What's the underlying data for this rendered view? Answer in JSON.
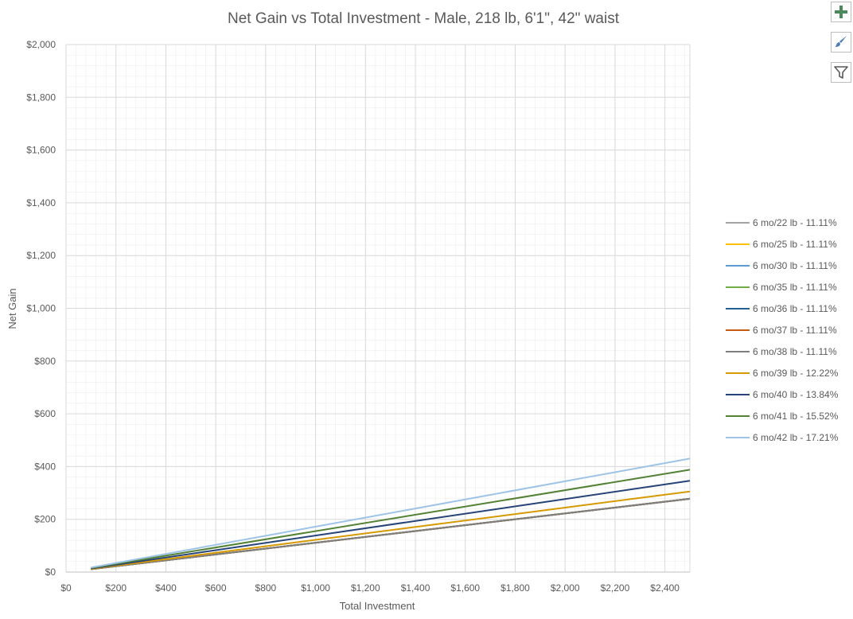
{
  "chart_data": {
    "type": "line",
    "title": "Net Gain vs Total Investment - Male, 218 lb, 6'1\", 42\" waist",
    "xlabel": "Total Investment",
    "ylabel": "Net Gain",
    "xlim": [
      0,
      2500
    ],
    "ylim": [
      0,
      2000
    ],
    "x_ticks": [
      0,
      200,
      400,
      600,
      800,
      1000,
      1200,
      1400,
      1600,
      1800,
      2000,
      2200,
      2400
    ],
    "x_tick_labels": [
      "$0",
      "$200",
      "$400",
      "$600",
      "$800",
      "$1,000",
      "$1,200",
      "$1,400",
      "$1,600",
      "$1,800",
      "$2,000",
      "$2,200",
      "$2,400"
    ],
    "y_ticks": [
      0,
      200,
      400,
      600,
      800,
      1000,
      1200,
      1400,
      1600,
      1800,
      2000
    ],
    "y_tick_labels": [
      "$0",
      "$200",
      "$400",
      "$600",
      "$800",
      "$1,000",
      "$1,200",
      "$1,400",
      "$1,600",
      "$1,800",
      "$2,000"
    ],
    "grid": true,
    "legend_position": "right",
    "series": [
      {
        "name": "6 mo/22 lb - 11.11%",
        "color": "#a5a5a5",
        "x": [
          100,
          2500
        ],
        "y": [
          11.1,
          277.8
        ]
      },
      {
        "name": "6 mo/25 lb - 11.11%",
        "color": "#ffc000",
        "x": [
          100,
          2500
        ],
        "y": [
          11.1,
          277.8
        ]
      },
      {
        "name": "6 mo/30 lb - 11.11%",
        "color": "#5b9bd5",
        "x": [
          100,
          2500
        ],
        "y": [
          11.1,
          277.8
        ]
      },
      {
        "name": "6 mo/35 lb - 11.11%",
        "color": "#70ad47",
        "x": [
          100,
          2500
        ],
        "y": [
          11.1,
          277.8
        ]
      },
      {
        "name": "6 mo/36 lb - 11.11%",
        "color": "#255e91",
        "x": [
          100,
          2500
        ],
        "y": [
          11.1,
          277.8
        ]
      },
      {
        "name": "6 mo/37 lb - 11.11%",
        "color": "#c55a11",
        "x": [
          100,
          2500
        ],
        "y": [
          11.1,
          277.8
        ]
      },
      {
        "name": "6 mo/38 lb - 11.11%",
        "color": "#7f7f7f",
        "x": [
          100,
          2500
        ],
        "y": [
          11.1,
          277.8
        ]
      },
      {
        "name": "6 mo/39 lb - 12.22%",
        "color": "#d69a00",
        "x": [
          100,
          2500
        ],
        "y": [
          12.2,
          305.5
        ]
      },
      {
        "name": "6 mo/40 lb - 13.84%",
        "color": "#264478",
        "x": [
          100,
          2500
        ],
        "y": [
          13.8,
          346.0
        ]
      },
      {
        "name": "6 mo/41 lb - 15.52%",
        "color": "#548235",
        "x": [
          100,
          2500
        ],
        "y": [
          15.5,
          388.0
        ]
      },
      {
        "name": "6 mo/42 lb - 17.21%",
        "color": "#9dc3e6",
        "x": [
          100,
          2500
        ],
        "y": [
          17.2,
          430.3
        ]
      }
    ]
  },
  "toolbar": {
    "add_icon": "plus-icon",
    "style_icon": "paintbrush-icon",
    "filter_icon": "filter-icon"
  },
  "colors": {
    "text": "#595959",
    "gridline": "#d9d9d9",
    "minor_gridline": "#ededed",
    "axis": "#bfbfbf",
    "button_accent": "#4a8a5a"
  }
}
